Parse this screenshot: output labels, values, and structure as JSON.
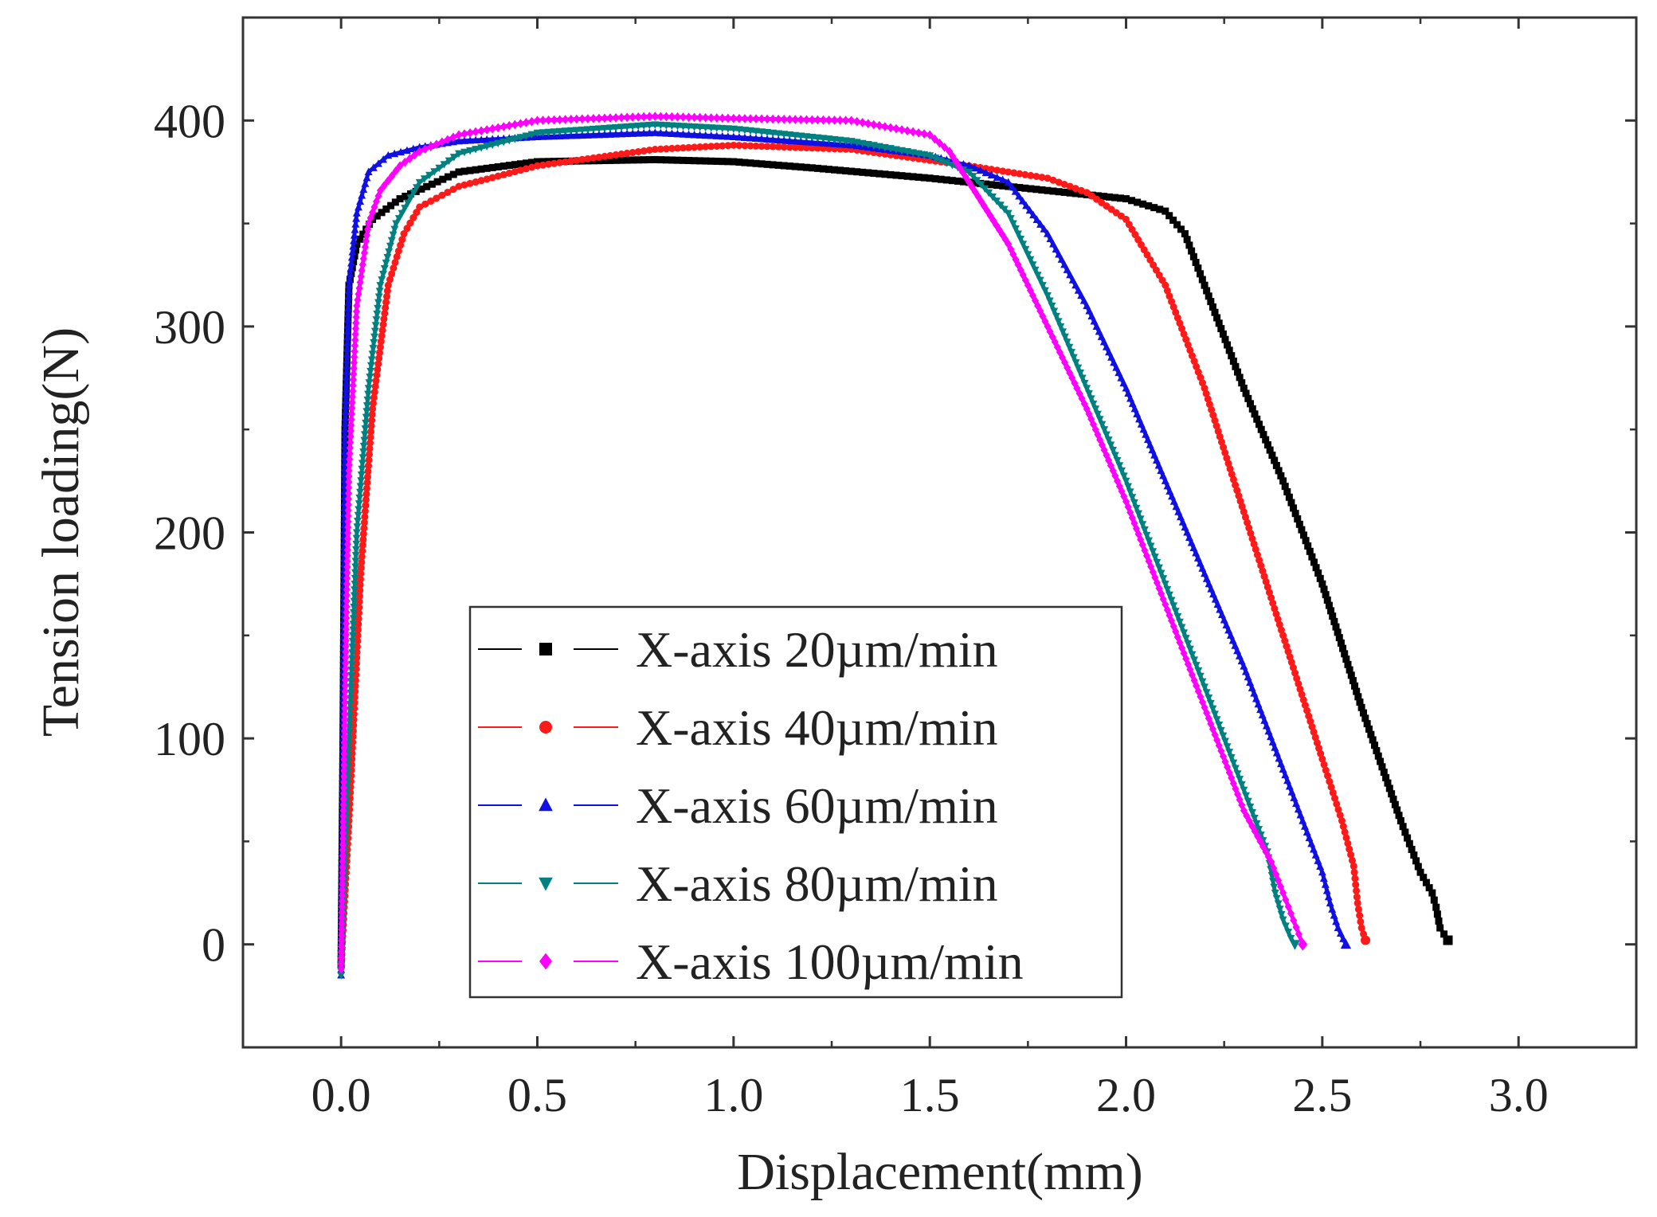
{
  "chart_data": {
    "type": "line",
    "title": "",
    "xlabel": "Displacement(mm)",
    "ylabel": "Tension loading(N)",
    "xlim": [
      -0.25,
      3.3
    ],
    "ylim": [
      -50,
      450
    ],
    "xticks": [
      0.0,
      0.5,
      1.0,
      1.5,
      2.0,
      2.5,
      3.0
    ],
    "xtick_labels": [
      "0.0",
      "0.5",
      "1.0",
      "1.5",
      "2.0",
      "2.5",
      "3.0"
    ],
    "yticks": [
      0,
      100,
      200,
      300,
      400
    ],
    "ytick_labels": [
      "0",
      "100",
      "200",
      "300",
      "400"
    ],
    "grid": false,
    "legend_position": "lower-center",
    "series": [
      {
        "name": "X-axis 20µm/min",
        "color": "#000000",
        "marker": "square",
        "x": [
          0.0,
          0.005,
          0.01,
          0.02,
          0.04,
          0.08,
          0.15,
          0.3,
          0.5,
          0.8,
          1.0,
          1.2,
          1.5,
          1.8,
          2.0,
          2.1,
          2.15,
          2.2,
          2.3,
          2.4,
          2.5,
          2.6,
          2.7,
          2.75,
          2.78,
          2.79,
          2.8,
          2.82
        ],
        "y": [
          -10,
          100,
          250,
          320,
          340,
          352,
          362,
          375,
          380,
          381,
          380,
          377,
          372,
          366,
          362,
          356,
          345,
          320,
          270,
          225,
          175,
          115,
          60,
          35,
          25,
          18,
          8,
          2
        ]
      },
      {
        "name": "X-axis 40µm/min",
        "color": "#ff1a1a",
        "marker": "circle",
        "x": [
          0.0,
          0.02,
          0.05,
          0.08,
          0.12,
          0.16,
          0.2,
          0.3,
          0.5,
          0.8,
          1.0,
          1.3,
          1.6,
          1.8,
          1.9,
          2.0,
          2.1,
          2.2,
          2.3,
          2.4,
          2.5,
          2.55,
          2.58,
          2.59,
          2.6,
          2.61
        ],
        "y": [
          -10,
          60,
          180,
          260,
          320,
          345,
          358,
          368,
          378,
          386,
          388,
          386,
          378,
          372,
          365,
          352,
          320,
          270,
          210,
          150,
          90,
          60,
          38,
          20,
          8,
          2
        ]
      },
      {
        "name": "X-axis 60µm/min",
        "color": "#1010e0",
        "marker": "triangle-up",
        "x": [
          0.0,
          0.005,
          0.01,
          0.02,
          0.04,
          0.07,
          0.12,
          0.2,
          0.3,
          0.5,
          0.8,
          1.0,
          1.3,
          1.5,
          1.6,
          1.7,
          1.8,
          1.9,
          2.0,
          2.1,
          2.2,
          2.3,
          2.4,
          2.45,
          2.5,
          2.52,
          2.54,
          2.56
        ],
        "y": [
          -15,
          100,
          250,
          320,
          355,
          375,
          383,
          387,
          390,
          392,
          394,
          392,
          388,
          383,
          378,
          370,
          345,
          310,
          270,
          225,
          180,
          135,
          85,
          60,
          35,
          20,
          8,
          0
        ]
      },
      {
        "name": "X-axis 80µm/min",
        "color": "#008080",
        "marker": "triangle-down",
        "x": [
          0.0,
          0.02,
          0.04,
          0.07,
          0.1,
          0.14,
          0.2,
          0.3,
          0.5,
          0.8,
          1.0,
          1.3,
          1.5,
          1.6,
          1.7,
          1.8,
          1.9,
          2.0,
          2.1,
          2.2,
          2.3,
          2.36,
          2.38,
          2.4,
          2.42,
          2.43
        ],
        "y": [
          -15,
          100,
          200,
          270,
          320,
          350,
          370,
          384,
          394,
          398,
          396,
          390,
          383,
          375,
          355,
          315,
          270,
          225,
          175,
          125,
          75,
          45,
          25,
          12,
          3,
          0
        ]
      },
      {
        "name": "X-axis 100µm/min",
        "color": "#ff00ff",
        "marker": "diamond",
        "x": [
          0.0,
          0.01,
          0.02,
          0.04,
          0.07,
          0.1,
          0.15,
          0.2,
          0.3,
          0.5,
          0.8,
          1.0,
          1.3,
          1.5,
          1.55,
          1.6,
          1.7,
          1.8,
          1.9,
          2.0,
          2.1,
          2.2,
          2.3,
          2.37,
          2.4,
          2.42,
          2.44,
          2.45
        ],
        "y": [
          -12,
          120,
          230,
          310,
          350,
          366,
          378,
          385,
          393,
          400,
          402,
          401,
          400,
          393,
          385,
          370,
          340,
          300,
          260,
          215,
          165,
          115,
          65,
          40,
          25,
          15,
          5,
          0
        ]
      }
    ]
  }
}
